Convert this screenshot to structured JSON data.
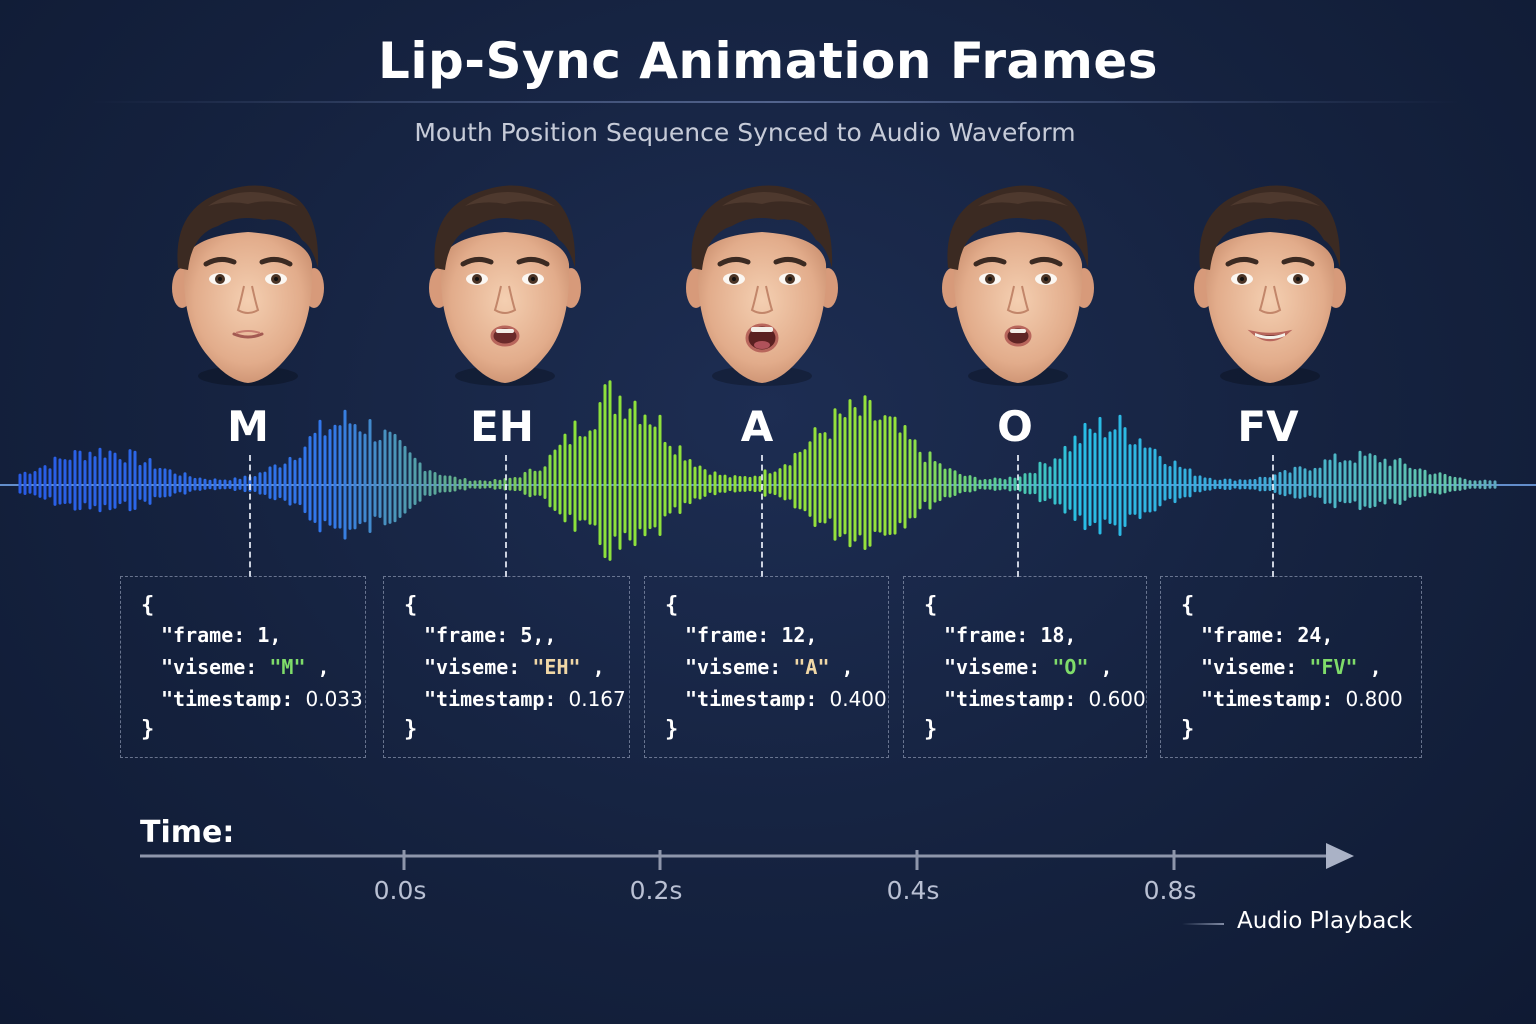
{
  "title": "Lip-Sync Animation Frames",
  "subtitle": "Mouth Position Sequence Synced to Audio Waveform",
  "frames": [
    {
      "viseme_label": "M",
      "brace_open": "{",
      "frame_key": "\"frame:",
      "frame_value": "1,",
      "viseme_key": "\"viseme:",
      "viseme_value": "\"M\"",
      "viseme_suffix": ",",
      "timestamp_key": "\"timestamp:",
      "timestamp_value": "0.033",
      "brace_close": "}",
      "mouth": "closed"
    },
    {
      "viseme_label": "EH",
      "brace_open": "{",
      "frame_key": "\"frame:",
      "frame_value": "5,,",
      "viseme_key": "\"viseme:",
      "viseme_value": "\"EH\"",
      "viseme_suffix": ",",
      "timestamp_key": "\"timestamp:",
      "timestamp_value": "0.167",
      "brace_close": "}",
      "mouth": "open-small"
    },
    {
      "viseme_label": "A",
      "brace_open": "{",
      "frame_key": "\"frame:",
      "frame_value": "12,",
      "viseme_key": "\"viseme:",
      "viseme_value": "\"A\"",
      "viseme_suffix": ",",
      "timestamp_key": "\"timestamp:",
      "timestamp_value": "0.400",
      "brace_close": "}",
      "mouth": "open-wide"
    },
    {
      "viseme_label": "O",
      "brace_open": "{",
      "frame_key": "\"frame:",
      "frame_value": "18,",
      "viseme_key": "\"viseme:",
      "viseme_value": "\"O\"",
      "viseme_suffix": ",",
      "timestamp_key": "\"timestamp:",
      "timestamp_value": "0.600",
      "brace_close": "}",
      "mouth": "round"
    },
    {
      "viseme_label": "FV",
      "brace_open": "{",
      "frame_key": "\"frame:",
      "frame_value": "24,",
      "viseme_key": "\"viseme:",
      "viseme_value": "\"FV\"",
      "viseme_suffix": ",",
      "timestamp_key": "\"timestamp:",
      "timestamp_value": "0.800",
      "brace_close": "}",
      "mouth": "teeth"
    }
  ],
  "timeline": {
    "label": "Time:",
    "ticks": [
      "0.0s",
      "0.2s",
      "0.4s",
      "0.8s"
    ],
    "playback_label": "Audio Playback"
  },
  "colors": {
    "background": "#15223f",
    "wave_blue": "#2f6fe6",
    "wave_green": "#8ee03a",
    "wave_teal": "#38c9c0",
    "string_green": "#7fdc6a",
    "string_warm": "#f0d7a6"
  }
}
